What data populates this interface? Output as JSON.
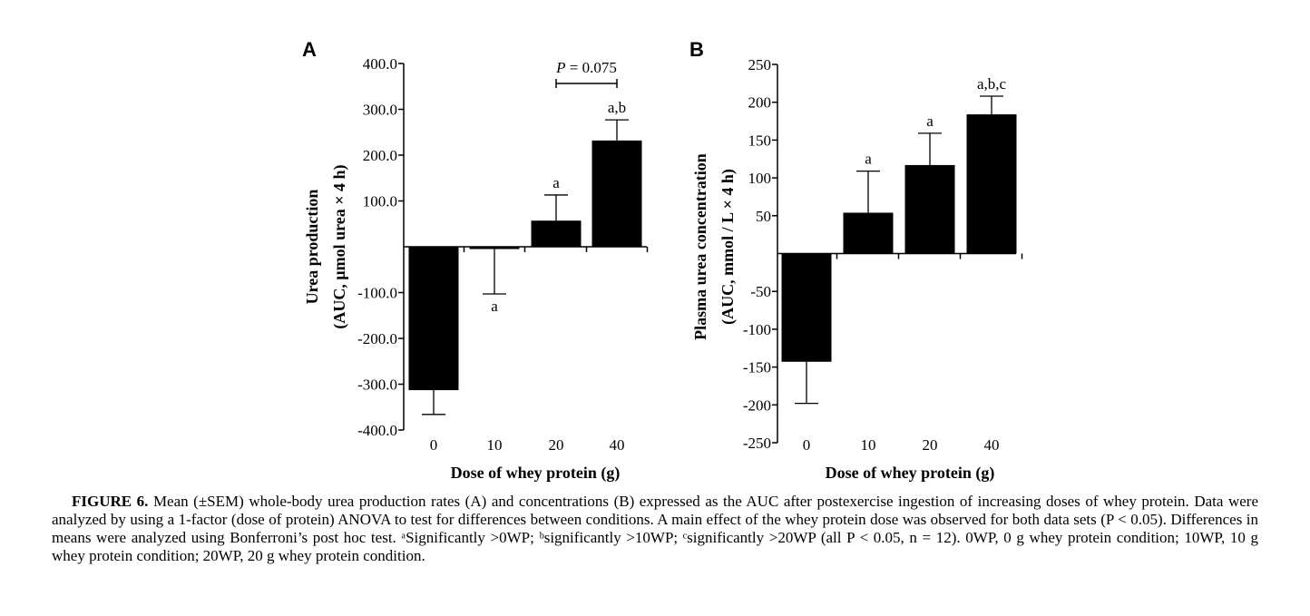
{
  "chart_data": [
    {
      "type": "bar",
      "panel": "A",
      "categories": [
        "0",
        "10",
        "20",
        "40"
      ],
      "values": [
        -313,
        -5,
        57,
        232
      ],
      "error_bars": [
        {
          "direction": "down",
          "end": -366
        },
        {
          "direction": "down",
          "end": -103
        },
        {
          "direction": "up",
          "end": 113
        },
        {
          "direction": "up",
          "end": 277
        }
      ],
      "significance_labels": [
        {
          "category": "10",
          "text": "a",
          "position": "below"
        },
        {
          "category": "20",
          "text": "a",
          "position": "above"
        },
        {
          "category": "40",
          "text": "a,b",
          "position": "above"
        }
      ],
      "comparison": {
        "from": "20",
        "to": "40",
        "label_prefix": "P",
        "label_suffix": " = 0.075"
      },
      "title": "",
      "xlabel": "Dose of whey protein (g)",
      "ylabel_line1": "Urea production",
      "ylabel_line2": "(AUC, μmol urea × 4 h)",
      "ylim": [
        -400,
        400
      ],
      "yticks": [
        {
          "value": 400,
          "label": "400.0"
        },
        {
          "value": 300,
          "label": "300.0"
        },
        {
          "value": 200,
          "label": "200.0"
        },
        {
          "value": 100,
          "label": "100.0"
        },
        {
          "value": -100,
          "label": "-100.0"
        },
        {
          "value": -200,
          "label": "-200.0"
        },
        {
          "value": -300,
          "label": "-300.0"
        },
        {
          "value": -400,
          "label": "-400.0"
        }
      ],
      "grid": false,
      "bar_color": "#000000"
    },
    {
      "type": "bar",
      "panel": "B",
      "categories": [
        "0",
        "10",
        "20",
        "40"
      ],
      "values": [
        -143,
        54,
        117,
        184
      ],
      "error_bars": [
        {
          "direction": "down",
          "end": -198
        },
        {
          "direction": "up",
          "end": 109
        },
        {
          "direction": "up",
          "end": 159
        },
        {
          "direction": "up",
          "end": 208
        }
      ],
      "significance_labels": [
        {
          "category": "10",
          "text": "a",
          "position": "above"
        },
        {
          "category": "20",
          "text": "a",
          "position": "above"
        },
        {
          "category": "40",
          "text": "a,b,c",
          "position": "above"
        }
      ],
      "title": "",
      "xlabel": "Dose of whey protein (g)",
      "ylabel_line1": "Plasma urea concentration",
      "ylabel_line2": "(AUC, mmol / L × 4 h)",
      "ylim": [
        -250,
        250
      ],
      "yticks": [
        {
          "value": 250,
          "label": "250"
        },
        {
          "value": 200,
          "label": "200"
        },
        {
          "value": 150,
          "label": "150"
        },
        {
          "value": 100,
          "label": "100"
        },
        {
          "value": 50,
          "label": "50"
        },
        {
          "value": -50,
          "label": "-50"
        },
        {
          "value": -100,
          "label": "-100"
        },
        {
          "value": -150,
          "label": "-150"
        },
        {
          "value": -200,
          "label": "-200"
        },
        {
          "value": -250,
          "label": "-250"
        }
      ],
      "grid": false,
      "bar_color": "#000000"
    }
  ],
  "caption": {
    "label": "FIGURE 6.",
    "text": " Mean (±SEM) whole-body urea production rates (A) and concentrations (B) expressed as the AUC after postexercise ingestion of increasing doses of whey protein. Data were analyzed by using a 1-factor (dose of protein) ANOVA to test for differences between conditions. A main effect of the whey protein dose was observed for both data sets (P < 0.05). Differences in means were analyzed using Bonferroni’s post hoc test. ᵃSignificantly >0WP; ᵇsignificantly >10WP; ᶜsignificantly >20WP (all P < 0.05, n = 12). 0WP, 0 g whey protein condition; 10WP, 10 g whey protein condition; 20WP, 20 g whey protein condition."
  }
}
